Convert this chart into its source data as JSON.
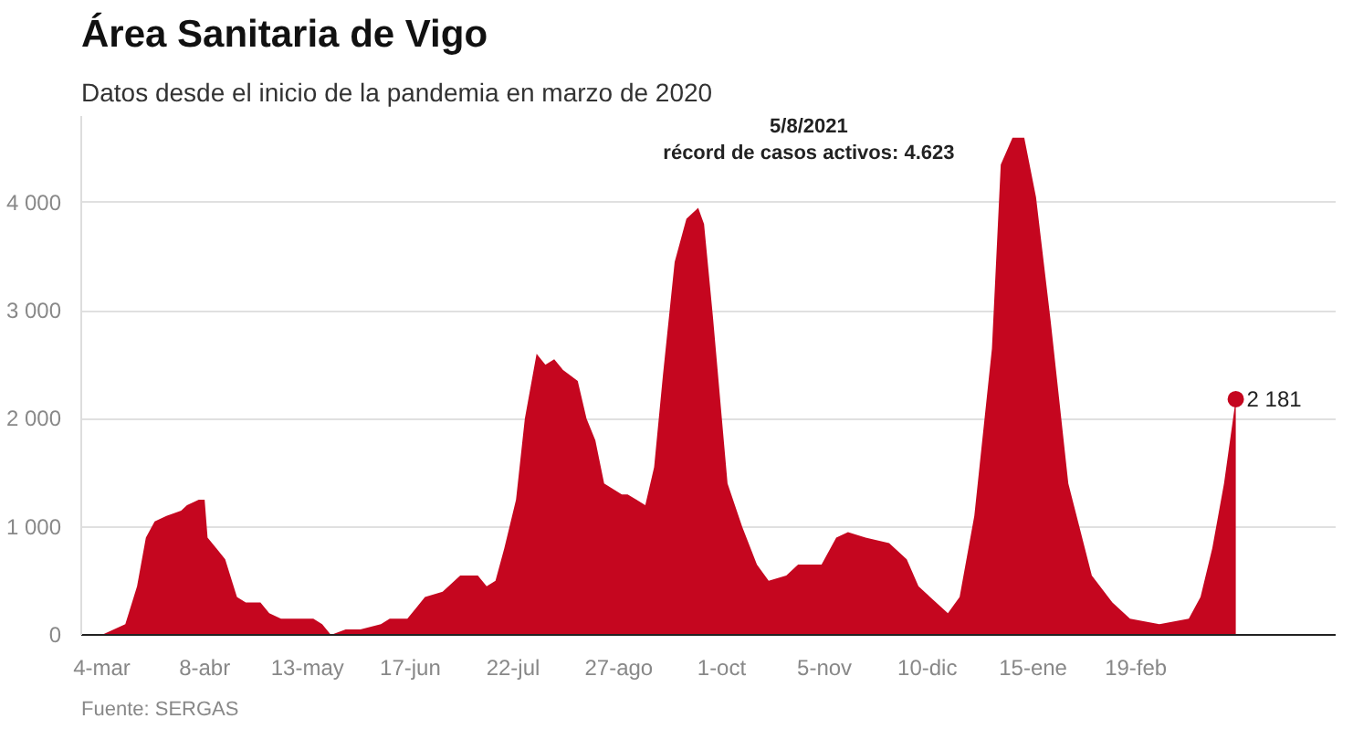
{
  "chart_data": {
    "type": "area",
    "title": "Área Sanitaria de Vigo",
    "subtitle": "Datos desde el inicio de la pandemia en marzo de 2020",
    "x": [
      "2020-03-04",
      "2020-03-12",
      "2020-03-16",
      "2020-03-19",
      "2020-03-22",
      "2020-03-26",
      "2020-03-31",
      "2020-04-02",
      "2020-04-06",
      "2020-04-08",
      "2020-04-09",
      "2020-04-12",
      "2020-04-15",
      "2020-04-19",
      "2020-04-22",
      "2020-04-27",
      "2020-04-30",
      "2020-05-04",
      "2020-05-15",
      "2020-05-18",
      "2020-05-21",
      "2020-05-26",
      "2020-05-31",
      "2020-06-07",
      "2020-06-10",
      "2020-06-16",
      "2020-06-19",
      "2020-06-22",
      "2020-06-28",
      "2020-07-04",
      "2020-07-10",
      "2020-07-13",
      "2020-07-16",
      "2020-07-19",
      "2020-07-23",
      "2020-07-26",
      "2020-07-30",
      "2020-08-02",
      "2020-08-05",
      "2020-08-08",
      "2020-08-13",
      "2020-08-16",
      "2020-08-19",
      "2020-08-22",
      "2020-08-25",
      "2020-08-28",
      "2020-08-30",
      "2020-09-02",
      "2020-09-05",
      "2020-09-08",
      "2020-09-11",
      "2020-09-15",
      "2020-09-19",
      "2020-09-23",
      "2020-09-25",
      "2020-09-28",
      "2020-10-03",
      "2020-10-08",
      "2020-10-13",
      "2020-10-17",
      "2020-10-23",
      "2020-10-27",
      "2020-10-30",
      "2020-11-04",
      "2020-11-09",
      "2020-11-13",
      "2020-11-19",
      "2020-11-27",
      "2020-12-03",
      "2020-12-07",
      "2020-12-17",
      "2020-12-21",
      "2020-12-26",
      "2021-01-01",
      "2021-01-04",
      "2021-01-08",
      "2021-01-12",
      "2021-01-16",
      "2021-01-21",
      "2021-01-27",
      "2021-02-04",
      "2021-02-11",
      "2021-02-17",
      "2021-02-27",
      "2021-03-09",
      "2021-03-13",
      "2021-03-17",
      "2021-03-21",
      "2021-03-25"
    ],
    "series": [
      {
        "color": "#c5061f",
        "values": [
          0,
          100,
          450,
          900,
          1050,
          1100,
          1150,
          1200,
          1250,
          1250,
          900,
          800,
          700,
          350,
          300,
          300,
          200,
          150,
          150,
          100,
          0,
          50,
          50,
          100,
          150,
          150,
          250,
          350,
          400,
          550,
          550,
          450,
          500,
          800,
          1250,
          2000,
          2600,
          2500,
          2550,
          2450,
          2350,
          2000,
          1800,
          1400,
          1350,
          1300,
          1300,
          1250,
          1200,
          1550,
          2400,
          3450,
          3850,
          3950,
          3800,
          2950,
          1400,
          1000,
          650,
          500,
          550,
          650,
          650,
          650,
          900,
          950,
          900,
          850,
          700,
          450,
          200,
          350,
          1100,
          2650,
          4350,
          4600,
          4600,
          4050,
          2900,
          1400,
          550,
          300,
          150,
          100,
          150,
          350,
          800,
          1400,
          2181
        ]
      }
    ],
    "xlim": [
      "2020-02-26",
      "2021-04-28"
    ],
    "ylim": [
      0,
      4800
    ],
    "xticks": [
      {
        "value": "2020-03-04",
        "label": "4-mar"
      },
      {
        "value": "2020-04-08",
        "label": "8-abr"
      },
      {
        "value": "2020-05-13",
        "label": "13-may"
      },
      {
        "value": "2020-06-17",
        "label": "17-jun"
      },
      {
        "value": "2020-07-22",
        "label": "22-jul"
      },
      {
        "value": "2020-08-27",
        "label": "27-ago"
      },
      {
        "value": "2020-10-01",
        "label": "1-oct"
      },
      {
        "value": "2020-11-05",
        "label": "5-nov"
      },
      {
        "value": "2020-12-10",
        "label": "10-dic"
      },
      {
        "value": "2021-01-15",
        "label": "15-ene"
      },
      {
        "value": "2021-02-19",
        "label": "19-feb"
      }
    ],
    "yticks": [
      {
        "value": 0,
        "label": "0"
      },
      {
        "value": 1000,
        "label": "1 000"
      },
      {
        "value": 2000,
        "label": "2 000"
      },
      {
        "value": 3000,
        "label": "3 000"
      },
      {
        "value": 4000,
        "label": "4 000"
      }
    ],
    "grid": "y",
    "annotations": [
      "5/8/2021\nrécord de casos activos: 4.623",
      {
        "text": "2 181",
        "x": "2021-03-25",
        "y": 2181
      },
      "Fuente: SERGAS"
    ]
  }
}
